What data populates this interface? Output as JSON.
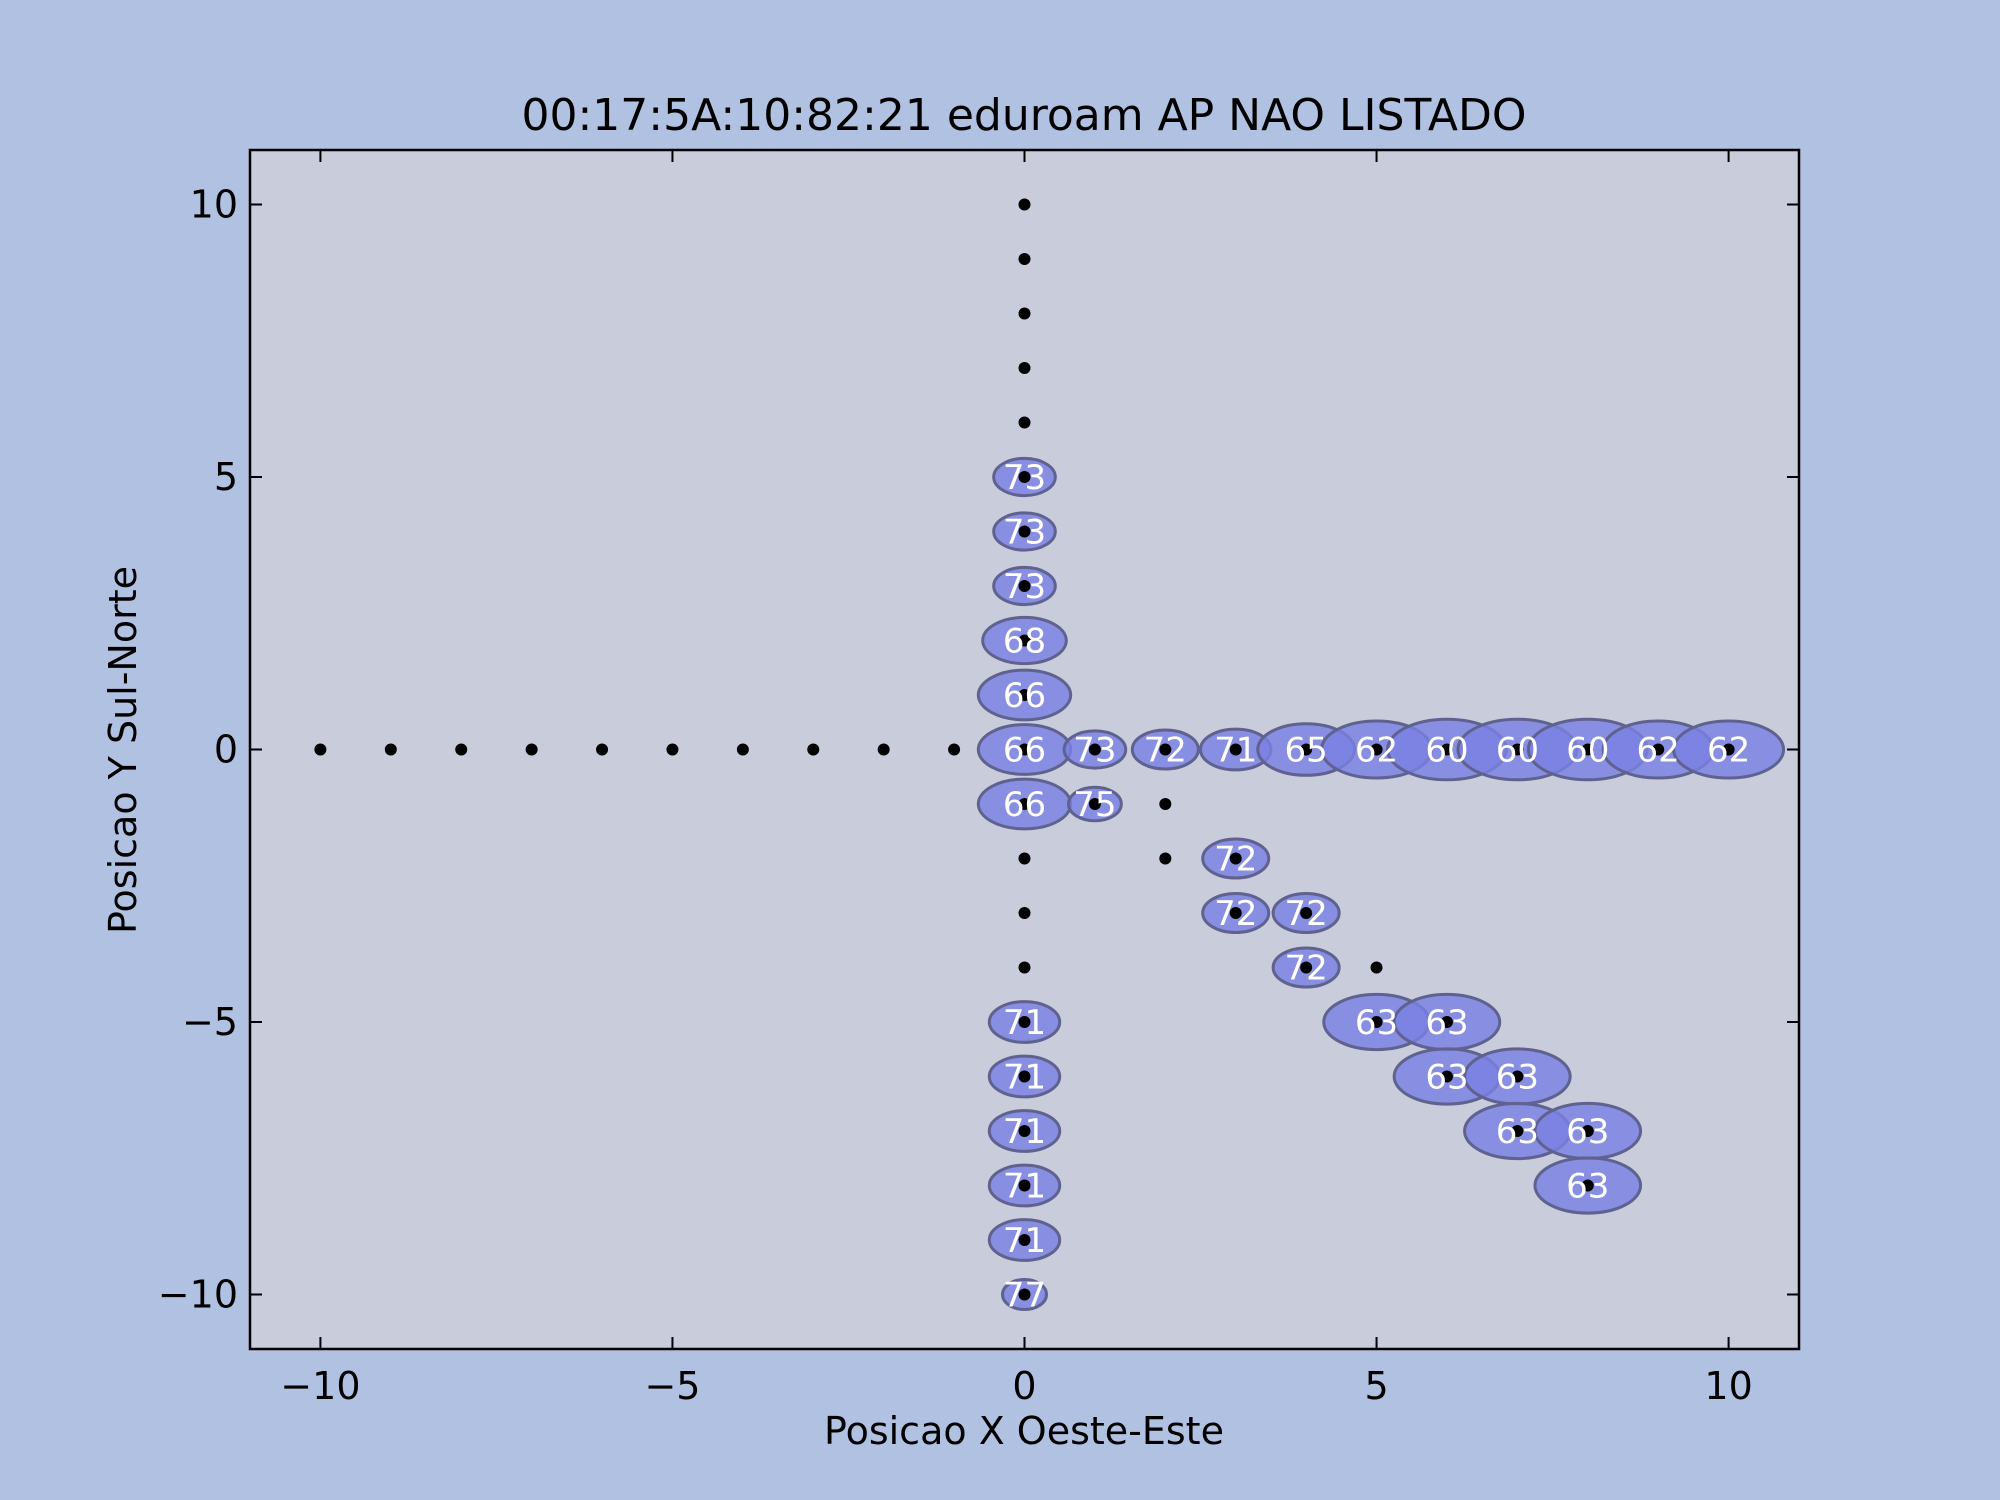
{
  "chart_data": {
    "type": "scatter",
    "title": "00:17:5A:10:82:21 eduroam AP NAO LISTADO",
    "xlabel": "Posicao X Oeste-Este",
    "ylabel": "Posicao Y Sul-Norte",
    "xlim": [
      -11,
      11
    ],
    "ylim": [
      -11,
      11
    ],
    "xticks": [
      -10,
      -5,
      0,
      5,
      10
    ],
    "yticks": [
      -10,
      -5,
      0,
      5,
      10
    ],
    "xtick_labels": [
      "−10",
      "−5",
      "0",
      "5",
      "10"
    ],
    "ytick_labels": [
      "−10",
      "−5",
      "0",
      "5",
      "10"
    ],
    "grid": false,
    "colors": {
      "figure_background": "#b0c1e1",
      "axes_background": "#c8ccdb",
      "bubble_fill": "#7a80e2",
      "bubble_edge": "#5f628f",
      "point": "#000000",
      "bubble_text": "#ffffff"
    },
    "points": [
      [
        0,
        10
      ],
      [
        0,
        9
      ],
      [
        0,
        8
      ],
      [
        0,
        7
      ],
      [
        0,
        6
      ],
      [
        0,
        5
      ],
      [
        0,
        4
      ],
      [
        0,
        3
      ],
      [
        0,
        2
      ],
      [
        0,
        1
      ],
      [
        0,
        0
      ],
      [
        0,
        -1
      ],
      [
        0,
        -2
      ],
      [
        0,
        -3
      ],
      [
        0,
        -4
      ],
      [
        0,
        -5
      ],
      [
        0,
        -6
      ],
      [
        0,
        -7
      ],
      [
        0,
        -8
      ],
      [
        0,
        -9
      ],
      [
        0,
        -10
      ],
      [
        -10,
        0
      ],
      [
        -9,
        0
      ],
      [
        -8,
        0
      ],
      [
        -7,
        0
      ],
      [
        -6,
        0
      ],
      [
        -5,
        0
      ],
      [
        -4,
        0
      ],
      [
        -3,
        0
      ],
      [
        -2,
        0
      ],
      [
        -1,
        0
      ],
      [
        1,
        0
      ],
      [
        2,
        0
      ],
      [
        3,
        0
      ],
      [
        4,
        0
      ],
      [
        5,
        0
      ],
      [
        6,
        0
      ],
      [
        7,
        0
      ],
      [
        8,
        0
      ],
      [
        9,
        0
      ],
      [
        10,
        0
      ],
      [
        1,
        -1
      ],
      [
        2,
        -1
      ],
      [
        2,
        -2
      ],
      [
        3,
        -2
      ],
      [
        3,
        -3
      ],
      [
        4,
        -3
      ],
      [
        4,
        -4
      ],
      [
        5,
        -4
      ],
      [
        5,
        -5
      ],
      [
        6,
        -5
      ],
      [
        6,
        -6
      ],
      [
        7,
        -6
      ],
      [
        7,
        -7
      ],
      [
        8,
        -7
      ],
      [
        8,
        -8
      ]
    ],
    "signals": [
      {
        "x": 0,
        "y": 5,
        "label": "73"
      },
      {
        "x": 0,
        "y": 4,
        "label": "73"
      },
      {
        "x": 0,
        "y": 3,
        "label": "73"
      },
      {
        "x": 0,
        "y": 2,
        "label": "68"
      },
      {
        "x": 0,
        "y": 1,
        "label": "66"
      },
      {
        "x": 0,
        "y": 0,
        "label": "66"
      },
      {
        "x": 0,
        "y": -1,
        "label": "66"
      },
      {
        "x": 1,
        "y": 0,
        "label": "73"
      },
      {
        "x": 2,
        "y": 0,
        "label": "72"
      },
      {
        "x": 3,
        "y": 0,
        "label": "71"
      },
      {
        "x": 4,
        "y": 0,
        "label": "65"
      },
      {
        "x": 5,
        "y": 0,
        "label": "62"
      },
      {
        "x": 6,
        "y": 0,
        "label": "60"
      },
      {
        "x": 7,
        "y": 0,
        "label": "60"
      },
      {
        "x": 8,
        "y": 0,
        "label": "60"
      },
      {
        "x": 9,
        "y": 0,
        "label": "62"
      },
      {
        "x": 10,
        "y": 0,
        "label": "62"
      },
      {
        "x": 1,
        "y": -1,
        "label": "75"
      },
      {
        "x": 3,
        "y": -2,
        "label": "72"
      },
      {
        "x": 3,
        "y": -3,
        "label": "72"
      },
      {
        "x": 4,
        "y": -3,
        "label": "72"
      },
      {
        "x": 4,
        "y": -4,
        "label": "72"
      },
      {
        "x": 5,
        "y": -5,
        "label": "63"
      },
      {
        "x": 6,
        "y": -5,
        "label": "63"
      },
      {
        "x": 6,
        "y": -6,
        "label": "63"
      },
      {
        "x": 7,
        "y": -6,
        "label": "63"
      },
      {
        "x": 7,
        "y": -7,
        "label": "63"
      },
      {
        "x": 8,
        "y": -7,
        "label": "63"
      },
      {
        "x": 8,
        "y": -8,
        "label": "63"
      },
      {
        "x": 0,
        "y": -5,
        "label": "71"
      },
      {
        "x": 0,
        "y": -6,
        "label": "71"
      },
      {
        "x": 0,
        "y": -7,
        "label": "71"
      },
      {
        "x": 0,
        "y": -8,
        "label": "71"
      },
      {
        "x": 0,
        "y": -9,
        "label": "71"
      },
      {
        "x": 0,
        "y": -10,
        "label": "77"
      }
    ]
  }
}
